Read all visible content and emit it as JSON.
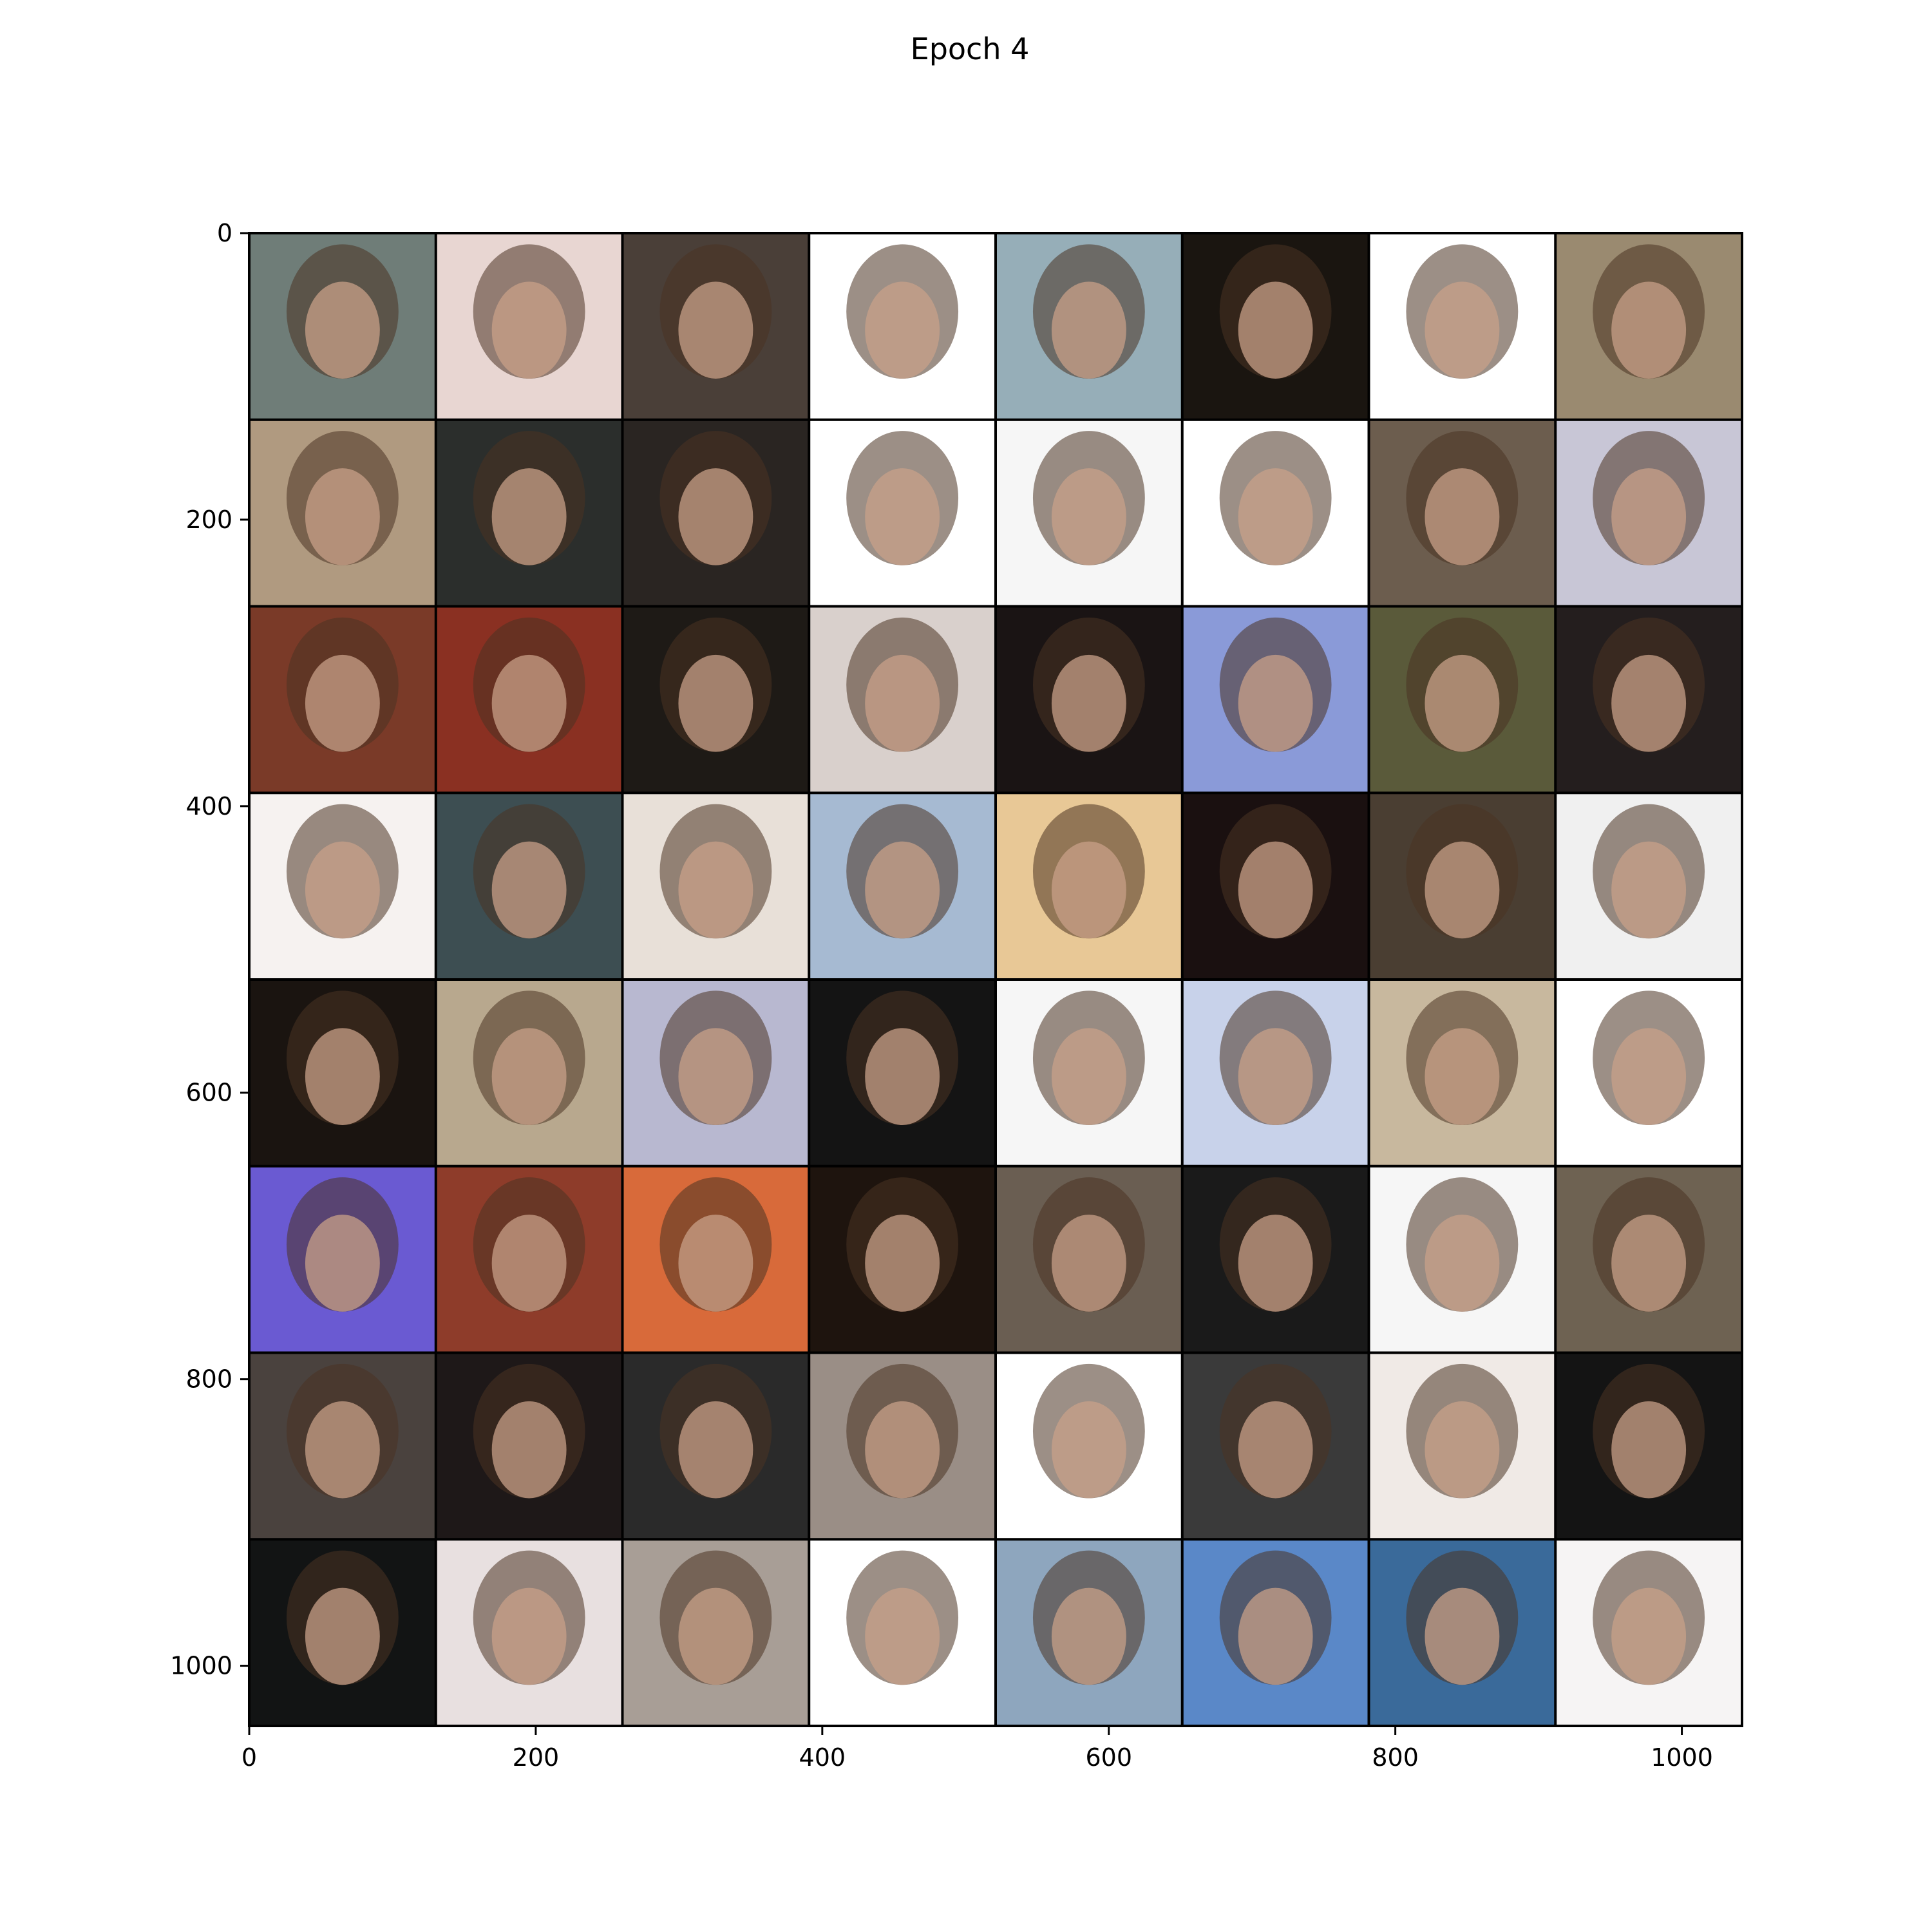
{
  "figure": {
    "title": "Epoch 4",
    "image_grid": {
      "rows": 8,
      "cols": 8,
      "content": "generated face images",
      "tile_border_color": "#000000"
    },
    "x_axis": {
      "range": [
        0,
        1042
      ],
      "ticks": [
        0,
        200,
        400,
        600,
        800,
        1000
      ]
    },
    "y_axis": {
      "range": [
        0,
        1042
      ],
      "inverted": true,
      "ticks": [
        0,
        200,
        400,
        600,
        800,
        1000
      ]
    },
    "tiles": [
      [
        "#6f7d78",
        "#e8d6d2",
        "#4a3f38",
        "#ffffff",
        "#96aeb8",
        "#1a1510",
        "#ffffff",
        "#9a8a70"
      ],
      [
        "#b09a80",
        "#2b2e2c",
        "#2a2522",
        "#ffffff",
        "#f6f6f6",
        "#ffffff",
        "#6c5d4e",
        "#c8c6d6"
      ],
      [
        "#7a3a28",
        "#8a3022",
        "#1e1a16",
        "#d9d0cc",
        "#1a1414",
        "#8a9ad8",
        "#5a5a3a",
        "#241e1e"
      ],
      [
        "#f6f2f0",
        "#3d4e52",
        "#e8e0d8",
        "#a6bad2",
        "#e8c896",
        "#1a1010",
        "#4a3e32",
        "#f0f0f0"
      ],
      [
        "#1a1410",
        "#b8a88e",
        "#b8b8d0",
        "#141414",
        "#f6f6f6",
        "#c8d2ea",
        "#c8b89e",
        "#ffffff"
      ],
      [
        "#6a5ad2",
        "#8e3c2a",
        "#d86a3a",
        "#1e140e",
        "#6a5e52",
        "#1a1a1a",
        "#f6f6f6",
        "#6e6252"
      ],
      [
        "#4a423e",
        "#1e1818",
        "#2a2a2a",
        "#9a8e86",
        "#ffffff",
        "#3a3a3a",
        "#f0eae6",
        "#141414"
      ],
      [
        "#121414",
        "#e8e0e0",
        "#a89e96",
        "#ffffff",
        "#8ea6be",
        "#5a88c8",
        "#3a6a9a",
        "#f6f4f4"
      ]
    ]
  }
}
